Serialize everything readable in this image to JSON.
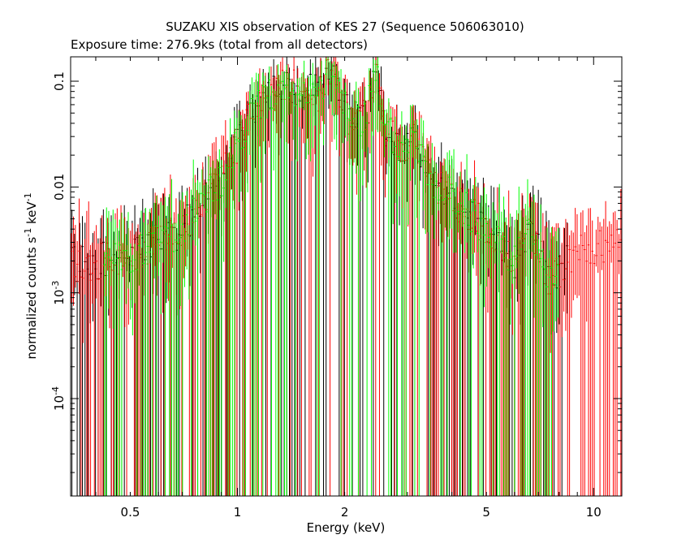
{
  "chart_data": {
    "type": "scatter",
    "title": "SUZAKU XIS observation of KES 27 (Sequence 506063010)",
    "subtitle": "Exposure time: 276.9ks (total from all detectors)",
    "xlabel": "Energy (keV)",
    "ylabel_main": "normalized counts s",
    "ylabel_sup1": "-1",
    "ylabel_mid": " keV",
    "ylabel_sup2": "-1",
    "x_scale": "log",
    "y_scale": "log",
    "xlim": [
      0.34,
      12
    ],
    "ylim": [
      1.2e-05,
      0.17
    ],
    "x_ticks": [
      {
        "value": 0.5,
        "label": "0.5"
      },
      {
        "value": 1,
        "label": "1"
      },
      {
        "value": 2,
        "label": "2"
      },
      {
        "value": 5,
        "label": "5"
      },
      {
        "value": 10,
        "label": "10"
      }
    ],
    "y_ticks": [
      {
        "value": 0.1,
        "label": "0.1",
        "base": "",
        "exp": ""
      },
      {
        "value": 0.01,
        "label": "0.01",
        "base": "",
        "exp": ""
      },
      {
        "value": 0.001,
        "label": "",
        "base": "10",
        "exp": "-3"
      },
      {
        "value": 0.0001,
        "label": "",
        "base": "10",
        "exp": "-4"
      }
    ],
    "grid": false,
    "colors": {
      "black": "#000000",
      "red": "#ff0000",
      "green": "#00ff00"
    },
    "spectrum_profile": [
      [
        0.34,
        0.0018
      ],
      [
        0.5,
        0.0022
      ],
      [
        0.7,
        0.004
      ],
      [
        0.9,
        0.012
      ],
      [
        1.0,
        0.025
      ],
      [
        1.1,
        0.05
      ],
      [
        1.25,
        0.075
      ],
      [
        1.35,
        0.095
      ],
      [
        1.5,
        0.085
      ],
      [
        1.7,
        0.075
      ],
      [
        1.85,
        0.16
      ],
      [
        1.95,
        0.07
      ],
      [
        2.1,
        0.04
      ],
      [
        2.3,
        0.05
      ],
      [
        2.45,
        0.12
      ],
      [
        2.6,
        0.035
      ],
      [
        3.0,
        0.022
      ],
      [
        3.15,
        0.03
      ],
      [
        3.5,
        0.012
      ],
      [
        4.0,
        0.008
      ],
      [
        5.0,
        0.004
      ],
      [
        6.0,
        0.002
      ],
      [
        6.7,
        0.004
      ],
      [
        7.5,
        0.0012
      ],
      [
        9.0,
        0.0025
      ],
      [
        12.0,
        0.003
      ]
    ],
    "series": [
      {
        "color": "black",
        "xmin": 0.34,
        "xmax": 8.5,
        "n": 190
      },
      {
        "color": "red",
        "xmin": 0.34,
        "xmax": 12.0,
        "n": 290
      },
      {
        "color": "green",
        "xmin": 0.42,
        "xmax": 8.0,
        "n": 210
      }
    ]
  }
}
